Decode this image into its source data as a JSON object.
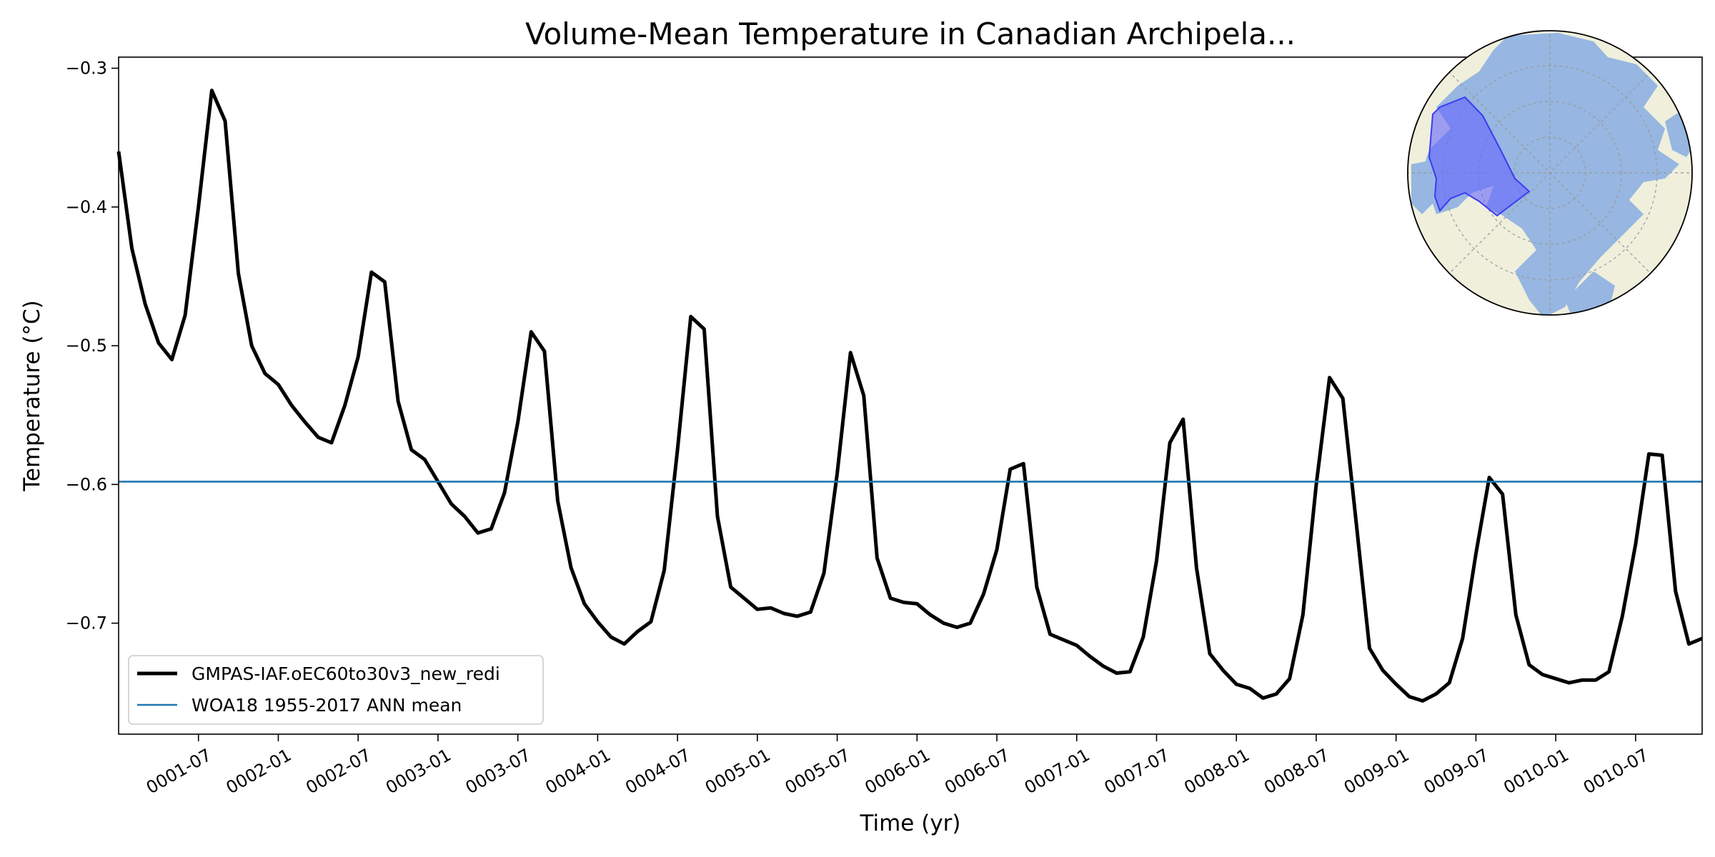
{
  "chart_data": {
    "type": "line",
    "title": "Volume-Mean Temperature in Canadian Archipela...",
    "xlabel": "Time (yr)",
    "ylabel": "Temperature (°C)",
    "xlim": [
      "0001-01",
      "0010-12"
    ],
    "ylim": [
      -0.78,
      -0.292
    ],
    "yticks": [
      "−0.3",
      "−0.4",
      "−0.5",
      "−0.6",
      "−0.7"
    ],
    "ytick_values": [
      -0.3,
      -0.4,
      -0.5,
      -0.6,
      -0.7
    ],
    "xticks": [
      "0001-07",
      "0002-01",
      "0002-07",
      "0003-01",
      "0003-07",
      "0004-01",
      "0004-07",
      "0005-01",
      "0005-07",
      "0006-01",
      "0006-07",
      "0007-01",
      "0007-07",
      "0008-01",
      "0008-07",
      "0009-01",
      "0009-07",
      "0010-01",
      "0010-07"
    ],
    "grid": false,
    "legend_position": "lower-left",
    "series": [
      {
        "name": "GMPAS-IAF.oEC60to30v3_new_redi",
        "color": "#000000",
        "x": [
          "0001-01",
          "0001-02",
          "0001-03",
          "0001-04",
          "0001-05",
          "0001-06",
          "0001-07",
          "0001-08",
          "0001-09",
          "0001-10",
          "0001-11",
          "0001-12",
          "0002-01",
          "0002-02",
          "0002-03",
          "0002-04",
          "0002-05",
          "0002-06",
          "0002-07",
          "0002-08",
          "0002-09",
          "0002-10",
          "0002-11",
          "0002-12",
          "0003-01",
          "0003-02",
          "0003-03",
          "0003-04",
          "0003-05",
          "0003-06",
          "0003-07",
          "0003-08",
          "0003-09",
          "0003-10",
          "0003-11",
          "0003-12",
          "0004-01",
          "0004-02",
          "0004-03",
          "0004-04",
          "0004-05",
          "0004-06",
          "0004-07",
          "0004-08",
          "0004-09",
          "0004-10",
          "0004-11",
          "0004-12",
          "0005-01",
          "0005-02",
          "0005-03",
          "0005-04",
          "0005-05",
          "0005-06",
          "0005-07",
          "0005-08",
          "0005-09",
          "0005-10",
          "0005-11",
          "0005-12",
          "0006-01",
          "0006-02",
          "0006-03",
          "0006-04",
          "0006-05",
          "0006-06",
          "0006-07",
          "0006-08",
          "0006-09",
          "0006-10",
          "0006-11",
          "0006-12",
          "0007-01",
          "0007-02",
          "0007-03",
          "0007-04",
          "0007-05",
          "0007-06",
          "0007-07",
          "0007-08",
          "0007-09",
          "0007-10",
          "0007-11",
          "0007-12",
          "0008-01",
          "0008-02",
          "0008-03",
          "0008-04",
          "0008-05",
          "0008-06",
          "0008-07",
          "0008-08",
          "0008-09",
          "0008-10",
          "0008-11",
          "0008-12",
          "0009-01",
          "0009-02",
          "0009-03",
          "0009-04",
          "0009-05",
          "0009-06",
          "0009-07",
          "0009-08",
          "0009-09",
          "0009-10",
          "0009-11",
          "0009-12",
          "0010-01",
          "0010-02",
          "0010-03",
          "0010-04",
          "0010-05",
          "0010-06",
          "0010-07",
          "0010-08",
          "0010-09",
          "0010-10",
          "0010-11",
          "0010-12"
        ],
        "values": [
          -0.36,
          -0.43,
          -0.47,
          -0.498,
          -0.51,
          -0.478,
          -0.4,
          -0.316,
          -0.338,
          -0.448,
          -0.5,
          -0.52,
          -0.528,
          -0.543,
          -0.555,
          -0.566,
          -0.57,
          -0.543,
          -0.508,
          -0.447,
          -0.454,
          -0.54,
          -0.575,
          -0.582,
          -0.598,
          -0.614,
          -0.623,
          -0.635,
          -0.632,
          -0.606,
          -0.555,
          -0.49,
          -0.504,
          -0.612,
          -0.66,
          -0.686,
          -0.699,
          -0.71,
          -0.715,
          -0.706,
          -0.699,
          -0.662,
          -0.575,
          -0.479,
          -0.488,
          -0.623,
          -0.674,
          -0.682,
          -0.69,
          -0.689,
          -0.693,
          -0.695,
          -0.692,
          -0.664,
          -0.592,
          -0.505,
          -0.536,
          -0.653,
          -0.682,
          -0.685,
          -0.686,
          -0.694,
          -0.7,
          -0.703,
          -0.7,
          -0.679,
          -0.647,
          -0.589,
          -0.585,
          -0.674,
          -0.708,
          -0.712,
          -0.716,
          -0.724,
          -0.731,
          -0.736,
          -0.735,
          -0.71,
          -0.655,
          -0.57,
          -0.553,
          -0.66,
          -0.722,
          -0.734,
          -0.744,
          -0.747,
          -0.754,
          -0.751,
          -0.74,
          -0.694,
          -0.6,
          -0.523,
          -0.538,
          -0.627,
          -0.718,
          -0.734,
          -0.744,
          -0.753,
          -0.756,
          -0.751,
          -0.743,
          -0.711,
          -0.65,
          -0.595,
          -0.607,
          -0.694,
          -0.73,
          -0.737,
          -0.74,
          -0.743,
          -0.741,
          -0.741,
          -0.735,
          -0.695,
          -0.643,
          -0.578,
          -0.579,
          -0.677,
          -0.715,
          -0.711
        ]
      },
      {
        "name": "WOA18 1955-2017 ANN mean",
        "color": "#1f77b4",
        "values": [
          -0.598
        ]
      }
    ],
    "inset_map": {
      "type": "north polar stereographic map",
      "highlighted_region": "Canadian Archipelago",
      "land_color": "#efefdc",
      "ocean_color": "#97b6e1",
      "region_color": "#6464ff"
    }
  }
}
